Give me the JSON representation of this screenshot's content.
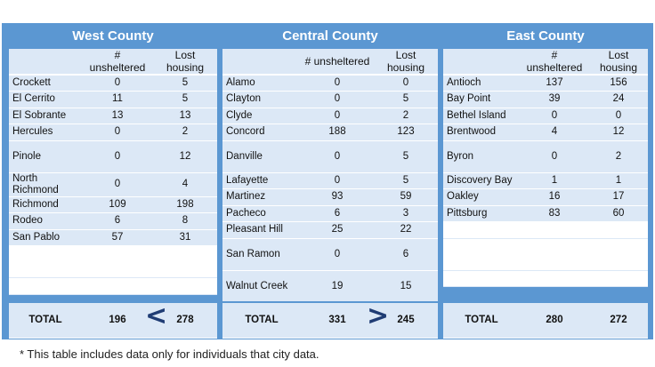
{
  "header": {
    "col_unsheltered": "# unsheltered",
    "col_lost_housing": "Lost housing"
  },
  "west": {
    "title": "West County",
    "rows": [
      {
        "city": "Crockett",
        "unsheltered": "0",
        "lost": "5"
      },
      {
        "city": "El Cerrito",
        "unsheltered": "11",
        "lost": "5"
      },
      {
        "city": "El Sobrante",
        "unsheltered": "13",
        "lost": "13"
      },
      {
        "city": "Hercules",
        "unsheltered": "0",
        "lost": "2"
      },
      {
        "city": "Pinole",
        "unsheltered": "0",
        "lost": "12"
      },
      {
        "city": "North Richmond",
        "unsheltered": "0",
        "lost": "4"
      },
      {
        "city": "Richmond",
        "unsheltered": "109",
        "lost": "198"
      },
      {
        "city": "Rodeo",
        "unsheltered": "6",
        "lost": "8"
      },
      {
        "city": "San Pablo",
        "unsheltered": "57",
        "lost": "31"
      }
    ],
    "total_label": "TOTAL",
    "total_unsheltered": "196",
    "total_lost": "278"
  },
  "central": {
    "title": "Central County",
    "rows": [
      {
        "city": "Alamo",
        "unsheltered": "0",
        "lost": "0"
      },
      {
        "city": "Clayton",
        "unsheltered": "0",
        "lost": "5"
      },
      {
        "city": "Clyde",
        "unsheltered": "0",
        "lost": "2"
      },
      {
        "city": "Concord",
        "unsheltered": "188",
        "lost": "123"
      },
      {
        "city": "Danville",
        "unsheltered": "0",
        "lost": "5"
      },
      {
        "city": "Lafayette",
        "unsheltered": "0",
        "lost": "5"
      },
      {
        "city": "Martinez",
        "unsheltered": "93",
        "lost": "59"
      },
      {
        "city": "Pacheco",
        "unsheltered": "6",
        "lost": "3"
      },
      {
        "city": "Pleasant Hill",
        "unsheltered": "25",
        "lost": "22"
      },
      {
        "city": "San Ramon",
        "unsheltered": "0",
        "lost": "6"
      },
      {
        "city": "Walnut Creek",
        "unsheltered": "19",
        "lost": "15"
      }
    ],
    "total_label": "TOTAL",
    "total_unsheltered": "331",
    "total_lost": "245"
  },
  "east": {
    "title": "East County",
    "rows": [
      {
        "city": "Antioch",
        "unsheltered": "137",
        "lost": "156"
      },
      {
        "city": "Bay Point",
        "unsheltered": "39",
        "lost": "24"
      },
      {
        "city": "Bethel Island",
        "unsheltered": "0",
        "lost": "0"
      },
      {
        "city": "Brentwood",
        "unsheltered": "4",
        "lost": "12"
      },
      {
        "city": "Byron",
        "unsheltered": "0",
        "lost": "2"
      },
      {
        "city": "Discovery Bay",
        "unsheltered": "1",
        "lost": "1"
      },
      {
        "city": "Oakley",
        "unsheltered": "16",
        "lost": "17"
      },
      {
        "city": "Pittsburg",
        "unsheltered": "83",
        "lost": "60"
      }
    ],
    "total_label": "TOTAL",
    "total_unsheltered": "280",
    "total_lost": "272"
  },
  "comparisons": {
    "west_symbol": "<",
    "central_symbol": ">"
  },
  "footnote": "* This table includes data only for individuals that city data."
}
